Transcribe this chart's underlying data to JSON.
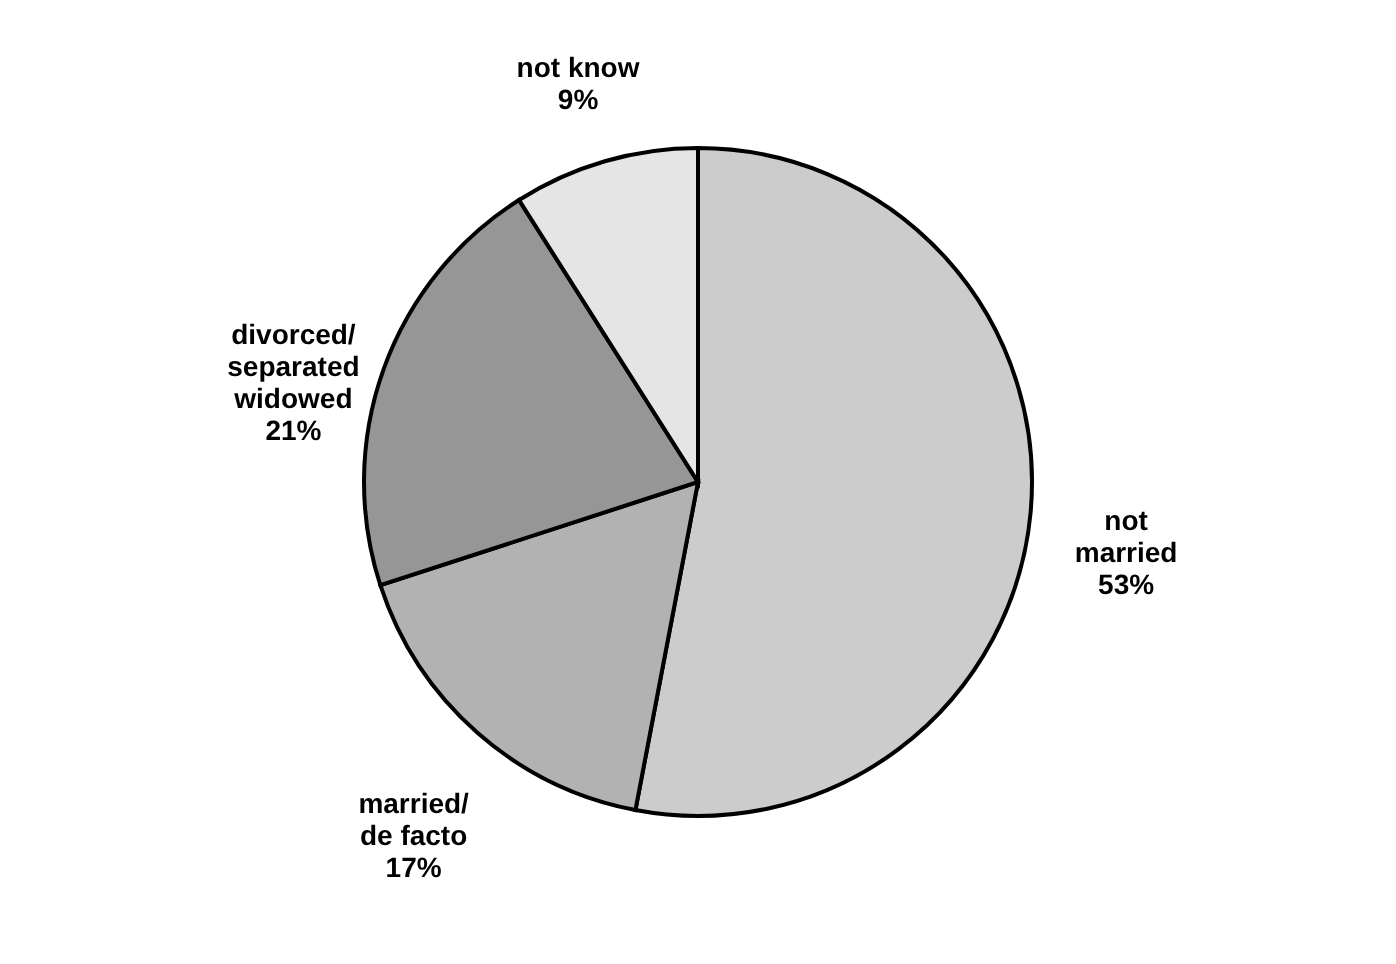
{
  "chart_data": {
    "type": "pie",
    "categories": [
      "not\nmarried",
      "married/\nde facto",
      "divorced/\nseparated\nwidowed",
      "not know"
    ],
    "values": [
      53,
      17,
      21,
      9
    ],
    "value_labels": [
      "53%",
      "17%",
      "21%",
      "9%"
    ],
    "colors": [
      "#cccccc",
      "#b2b2b2",
      "#969696",
      "#e5e5e5"
    ],
    "legend": false
  }
}
